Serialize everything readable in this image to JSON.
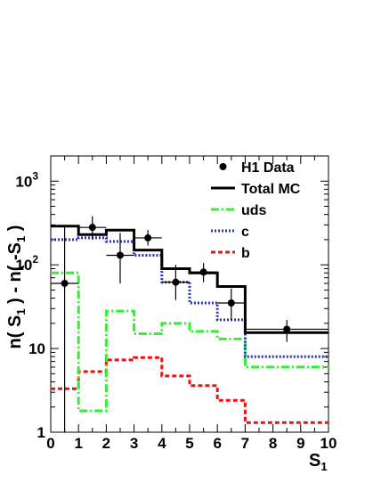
{
  "chart_data": {
    "type": "step",
    "log_y": true,
    "xlim": [
      0,
      10
    ],
    "ylim": [
      1,
      2000
    ],
    "x_ticks": [
      "0",
      "1",
      "2",
      "3",
      "4",
      "5",
      "6",
      "7",
      "8",
      "9",
      "10"
    ],
    "y_ticks": [
      {
        "value": 1,
        "base": "1",
        "exp": ""
      },
      {
        "value": 10,
        "base": "10",
        "exp": ""
      },
      {
        "value": 100,
        "base": "10",
        "exp": "2"
      },
      {
        "value": 1000,
        "base": "10",
        "exp": "3"
      }
    ],
    "xlabel": {
      "base": "S",
      "sub": "1"
    },
    "ylabel": {
      "p1": "n( S",
      "s1": "1",
      "p2": " ) - n( -S",
      "s2": "1",
      "p3": " )"
    },
    "legend": [
      {
        "label": "H1 Data",
        "style": "marker"
      },
      {
        "label": "Total MC",
        "style": "solid",
        "color": "#000000"
      },
      {
        "label": "uds",
        "style": "dashdot",
        "color": "#33ee33"
      },
      {
        "label": "c",
        "style": "dotted",
        "color": "#2233cc"
      },
      {
        "label": "b",
        "style": "dashed",
        "color": "#ee1111"
      }
    ],
    "bin_edges": [
      0,
      1,
      2,
      3,
      4,
      5,
      6,
      7,
      10
    ],
    "series": [
      {
        "key": "total",
        "color": "#000000",
        "values": [
          290,
          230,
          260,
          150,
          90,
          80,
          55,
          15.5
        ]
      },
      {
        "key": "uds",
        "color": "#33ee33",
        "values": [
          80,
          1.8,
          28,
          15,
          20,
          16,
          13,
          6
        ]
      },
      {
        "key": "c",
        "color": "#2233cc",
        "values": [
          200,
          210,
          190,
          130,
          62,
          35,
          22,
          8
        ]
      },
      {
        "key": "b",
        "color": "#ee1111",
        "values": [
          3.3,
          5.3,
          7.3,
          7.8,
          4.7,
          3.6,
          2.4,
          1.3
        ]
      }
    ],
    "data_points": [
      {
        "x": 0.5,
        "y": 60,
        "xerr": 0.5,
        "ylo": 1,
        "yhi": 300
      },
      {
        "x": 1.5,
        "y": 280,
        "xerr": 0.5,
        "ylo": 200,
        "yhi": 380
      },
      {
        "x": 2.5,
        "y": 130,
        "xerr": 0.5,
        "ylo": 60,
        "yhi": 240
      },
      {
        "x": 3.5,
        "y": 210,
        "xerr": 0.5,
        "ylo": 170,
        "yhi": 260
      },
      {
        "x": 4.5,
        "y": 62,
        "xerr": 0.5,
        "ylo": 38,
        "yhi": 100
      },
      {
        "x": 5.5,
        "y": 82,
        "xerr": 0.5,
        "ylo": 62,
        "yhi": 105
      },
      {
        "x": 6.5,
        "y": 35,
        "xerr": 0.5,
        "ylo": 22,
        "yhi": 52
      },
      {
        "x": 8.5,
        "y": 17,
        "xerr": 1.5,
        "ylo": 12,
        "yhi": 22
      }
    ]
  }
}
